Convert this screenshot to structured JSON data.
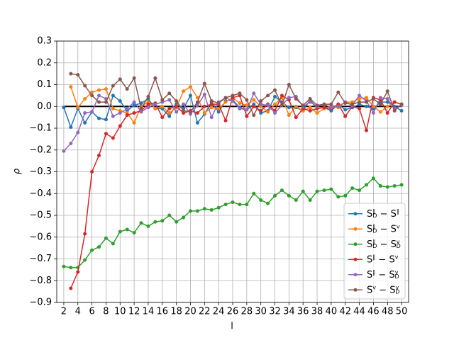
{
  "chart_data": {
    "type": "line",
    "xlabel": "l",
    "ylabel": "ρ",
    "x": [
      2,
      3,
      4,
      5,
      6,
      7,
      8,
      9,
      10,
      11,
      12,
      13,
      14,
      15,
      16,
      17,
      18,
      19,
      20,
      21,
      22,
      23,
      24,
      25,
      26,
      27,
      28,
      29,
      30,
      31,
      32,
      33,
      34,
      35,
      36,
      37,
      38,
      39,
      40,
      41,
      42,
      43,
      44,
      45,
      46,
      47,
      48,
      49,
      50
    ],
    "xlim": [
      1,
      51
    ],
    "xticks": [
      2,
      4,
      6,
      8,
      10,
      12,
      14,
      16,
      18,
      20,
      22,
      24,
      26,
      28,
      30,
      32,
      34,
      36,
      38,
      40,
      42,
      44,
      46,
      48,
      50
    ],
    "ylim": [
      -0.9,
      0.3
    ],
    "yticks": [
      {
        "value": -0.9,
        "label": "−0.9"
      },
      {
        "value": -0.8,
        "label": "−0.8"
      },
      {
        "value": -0.7,
        "label": "−0.7"
      },
      {
        "value": -0.6,
        "label": "−0.6"
      },
      {
        "value": -0.5,
        "label": "−0.5"
      },
      {
        "value": -0.4,
        "label": "−0.4"
      },
      {
        "value": -0.3,
        "label": "−0.3"
      },
      {
        "value": -0.2,
        "label": "−0.2"
      },
      {
        "value": -0.1,
        "label": "−0.1"
      },
      {
        "value": 0,
        "label": "0.0"
      },
      0.1,
      0.2,
      0.3
    ],
    "grid": true,
    "legend": "lower right",
    "hline": 0,
    "hline_color": "#000000",
    "series": [
      {
        "name": "S∥D − S∥",
        "color": "#1f77b4",
        "values": [
          -0.005,
          -0.095,
          -0.01,
          -0.075,
          -0.025,
          -0.055,
          -0.06,
          0.05,
          0.025,
          -0.02,
          0.005,
          0.015,
          0.035,
          -0.01,
          -0.01,
          -0.045,
          0.01,
          -0.01,
          0.05,
          -0.075,
          -0.035,
          0.02,
          -0.025,
          0.025,
          0.03,
          -0.005,
          -0.015,
          0.01,
          -0.03,
          -0.02,
          0.045,
          0.02,
          -0.005,
          -0.005,
          -0.02,
          0.03,
          -0.01,
          -0.005,
          -0.02,
          0.01,
          -0.015,
          -0.005,
          0.01,
          0.0,
          -0.01,
          0.02,
          0.02,
          0.0,
          -0.02
        ]
      },
      {
        "name": "S∥D − Sv",
        "color": "#ff7f0e",
        "values": [
          null,
          0.09,
          -0.005,
          0.035,
          0.065,
          0.075,
          0.08,
          -0.01,
          -0.02,
          -0.03,
          -0.075,
          0.0,
          0.02,
          -0.01,
          0.0,
          -0.03,
          -0.005,
          0.07,
          0.09,
          0.04,
          -0.03,
          -0.005,
          -0.01,
          0.02,
          0.04,
          0.015,
          0.005,
          0.03,
          0.0,
          -0.025,
          0.01,
          0.04,
          -0.04,
          0.0,
          -0.02,
          -0.005,
          -0.03,
          -0.01,
          0.0,
          -0.005,
          0.02,
          0.02,
          0.035,
          0.04,
          0.0,
          -0.025,
          0.0,
          0.02,
          0.01
        ]
      },
      {
        "name": "S∥D − SvD",
        "color": "#2ca02c",
        "values": [
          -0.735,
          -0.74,
          -0.74,
          -0.705,
          -0.66,
          -0.645,
          -0.605,
          -0.63,
          -0.575,
          -0.565,
          -0.58,
          -0.535,
          -0.55,
          -0.53,
          -0.525,
          -0.5,
          -0.53,
          -0.51,
          -0.48,
          -0.48,
          -0.47,
          -0.475,
          -0.465,
          -0.45,
          -0.44,
          -0.45,
          -0.45,
          -0.4,
          -0.43,
          -0.445,
          -0.41,
          -0.385,
          -0.41,
          -0.43,
          -0.39,
          -0.43,
          -0.39,
          -0.385,
          -0.38,
          -0.415,
          -0.41,
          -0.375,
          -0.385,
          -0.36,
          -0.33,
          -0.365,
          -0.37,
          -0.365,
          -0.36
        ]
      },
      {
        "name": "S∥ − Sv",
        "color": "#d62728",
        "values": [
          null,
          -0.835,
          -0.76,
          -0.585,
          -0.3,
          -0.225,
          -0.125,
          -0.145,
          -0.09,
          -0.04,
          -0.03,
          -0.02,
          0.01,
          0.015,
          -0.05,
          -0.01,
          0.0,
          -0.03,
          -0.02,
          -0.03,
          0.0,
          0.01,
          0.01,
          -0.065,
          0.04,
          0.05,
          -0.045,
          0.0,
          -0.02,
          0.01,
          -0.02,
          0.05,
          0.03,
          -0.05,
          -0.01,
          -0.02,
          -0.01,
          -0.005,
          -0.01,
          0.01,
          -0.045,
          0.0,
          -0.01,
          -0.11,
          0.04,
          0.03,
          -0.03,
          0.02,
          0.01
        ]
      },
      {
        "name": "S∥ − SvD",
        "color": "#9467bd",
        "values": [
          -0.205,
          -0.17,
          -0.12,
          -0.03,
          -0.025,
          0.05,
          0.035,
          -0.045,
          -0.03,
          -0.01,
          0.02,
          -0.025,
          -0.005,
          0.01,
          0.02,
          0.03,
          -0.025,
          0.01,
          -0.035,
          0.005,
          0.055,
          -0.05,
          0.02,
          0.04,
          0.025,
          -0.01,
          -0.015,
          0.06,
          0.01,
          0.005,
          -0.03,
          0.005,
          0.04,
          0.045,
          0.0,
          0.02,
          0.0,
          0.01,
          -0.005,
          0.0,
          0.02,
          0.005,
          0.05,
          0.025,
          -0.03,
          0.04,
          0.035,
          -0.01,
          0.005
        ]
      },
      {
        "name": "Sv − SvD",
        "color": "#8c564b",
        "values": [
          null,
          0.15,
          0.145,
          0.095,
          0.05,
          0.02,
          0.02,
          0.095,
          0.125,
          0.08,
          0.13,
          -0.01,
          0.045,
          0.13,
          0.03,
          0.06,
          0.025,
          -0.02,
          -0.025,
          0.02,
          0.105,
          0.025,
          0.015,
          0.04,
          0.05,
          0.06,
          0.03,
          -0.04,
          0.025,
          0.05,
          0.075,
          0.005,
          0.1,
          0.035,
          0.005,
          0.035,
          0.005,
          0.01,
          0.01,
          0.065,
          0.015,
          0.01,
          0.02,
          0.02,
          0.035,
          0.01,
          0.07,
          -0.02,
          0.01
        ]
      }
    ]
  }
}
